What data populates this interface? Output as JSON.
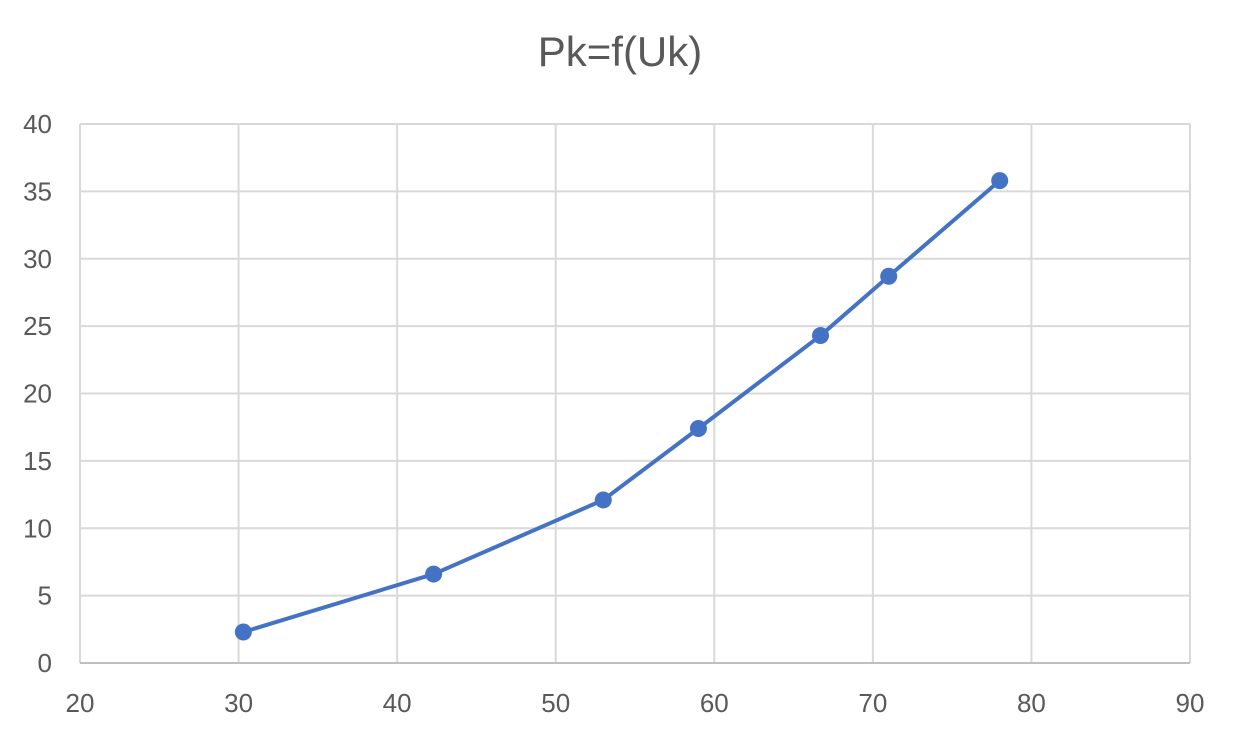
{
  "chart_data": {
    "type": "scatter",
    "title": "Pk=f(Uk)",
    "xlabel": "",
    "ylabel": "",
    "xlim": [
      20,
      90
    ],
    "ylim": [
      0,
      40
    ],
    "xticks": [
      20,
      30,
      40,
      50,
      60,
      70,
      80,
      90
    ],
    "yticks": [
      0,
      5,
      10,
      15,
      20,
      25,
      30,
      35,
      40
    ],
    "grid": true,
    "series": [
      {
        "color": "#4472C4",
        "line": true,
        "markers": true,
        "x": [
          30.3,
          42.3,
          53.0,
          59.0,
          66.7,
          71.0,
          78.0
        ],
        "y": [
          2.3,
          6.6,
          12.1,
          17.4,
          24.3,
          28.7,
          35.8
        ]
      }
    ]
  }
}
